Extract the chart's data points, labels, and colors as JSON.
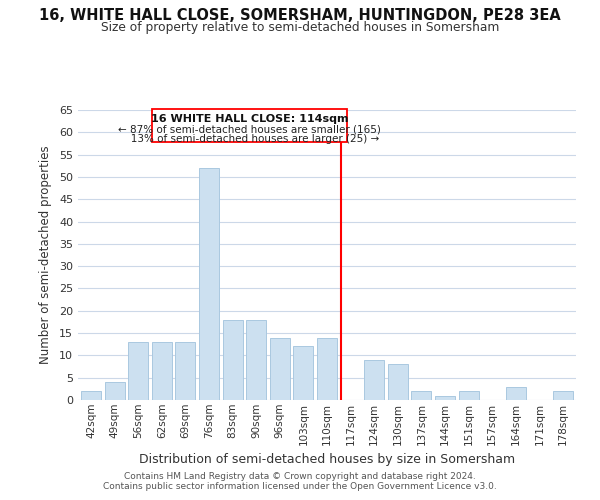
{
  "title": "16, WHITE HALL CLOSE, SOMERSHAM, HUNTINGDON, PE28 3EA",
  "subtitle": "Size of property relative to semi-detached houses in Somersham",
  "xlabel": "Distribution of semi-detached houses by size in Somersham",
  "ylabel": "Number of semi-detached properties",
  "bar_labels": [
    "42sqm",
    "49sqm",
    "56sqm",
    "62sqm",
    "69sqm",
    "76sqm",
    "83sqm",
    "90sqm",
    "96sqm",
    "103sqm",
    "110sqm",
    "117sqm",
    "124sqm",
    "130sqm",
    "137sqm",
    "144sqm",
    "151sqm",
    "157sqm",
    "164sqm",
    "171sqm",
    "178sqm"
  ],
  "bar_values": [
    2,
    4,
    13,
    13,
    13,
    52,
    18,
    18,
    14,
    12,
    14,
    0,
    9,
    8,
    2,
    1,
    2,
    0,
    3,
    0,
    2
  ],
  "bar_color": "#cce0f0",
  "bar_edge_color": "#aac8e0",
  "ref_line_index": 11,
  "ref_label": "16 WHITE HALL CLOSE: 114sqm",
  "smaller_pct": "87%",
  "smaller_count": 165,
  "larger_pct": "13%",
  "larger_count": 25,
  "ylim": [
    0,
    65
  ],
  "yticks": [
    0,
    5,
    10,
    15,
    20,
    25,
    30,
    35,
    40,
    45,
    50,
    55,
    60,
    65
  ],
  "footer1": "Contains HM Land Registry data © Crown copyright and database right 2024.",
  "footer2": "Contains public sector information licensed under the Open Government Licence v3.0.",
  "bg_color": "#ffffff",
  "grid_color": "#ccd8e8"
}
